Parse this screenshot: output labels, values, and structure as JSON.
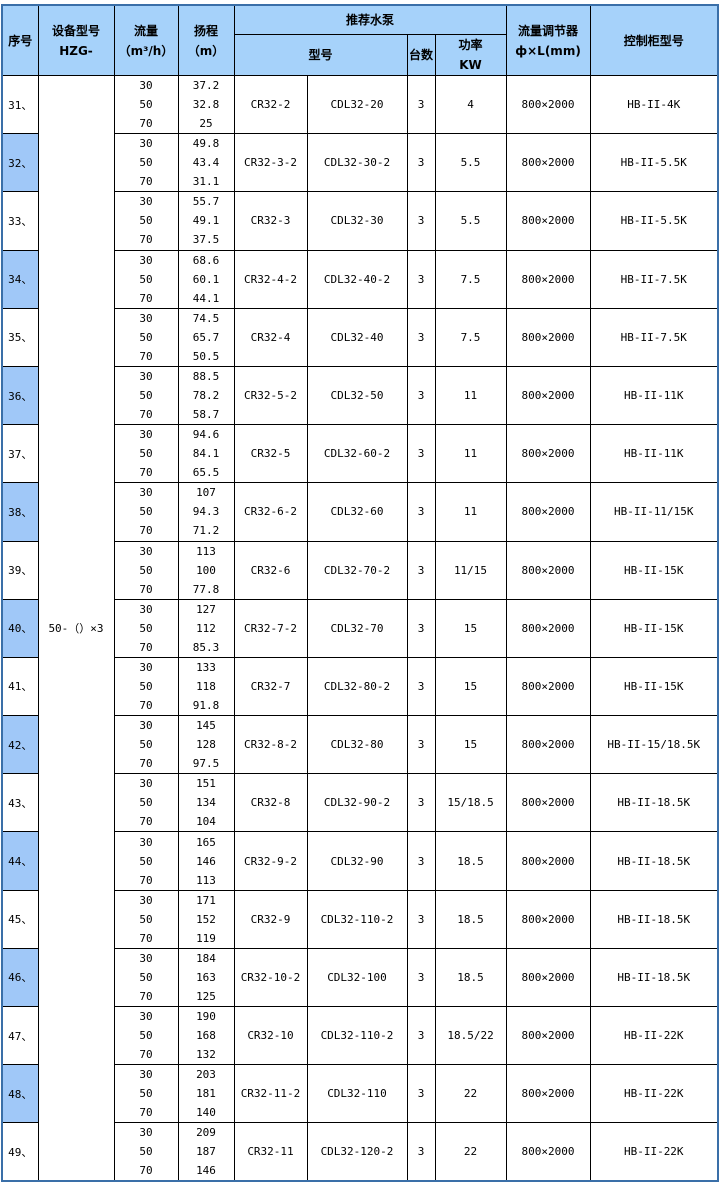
{
  "header": {
    "no": "序号",
    "model": "设备型号",
    "model_sub": "HZG-",
    "flow": "流量",
    "flow_unit": "（m³/h）",
    "head": "扬程",
    "head_unit": "（m）",
    "pump": "推荐水泵",
    "pump_model": "型号",
    "count": "台数",
    "power": "功率",
    "power_unit": "KW",
    "reg": "流量调节器",
    "reg_sub": "ф×L(mm)",
    "cabinet": "控制柜型号"
  },
  "device_model": "50-（）×3",
  "flows": [
    "30",
    "50",
    "70"
  ],
  "rows": [
    {
      "no": "31、",
      "heads": [
        "37.2",
        "32.8",
        "25"
      ],
      "cr": "CR32-2",
      "cdl": "CDL32-20",
      "n": "3",
      "kw": "4",
      "reg": "800×2000",
      "cab": "HB-II-4K"
    },
    {
      "no": "32、",
      "heads": [
        "49.8",
        "43.4",
        "31.1"
      ],
      "cr": "CR32-3-2",
      "cdl": "CDL32-30-2",
      "n": "3",
      "kw": "5.5",
      "reg": "800×2000",
      "cab": "HB-II-5.5K"
    },
    {
      "no": "33、",
      "heads": [
        "55.7",
        "49.1",
        "37.5"
      ],
      "cr": "CR32-3",
      "cdl": "CDL32-30",
      "n": "3",
      "kw": "5.5",
      "reg": "800×2000",
      "cab": "HB-II-5.5K"
    },
    {
      "no": "34、",
      "heads": [
        "68.6",
        "60.1",
        "44.1"
      ],
      "cr": "CR32-4-2",
      "cdl": "CDL32-40-2",
      "n": "3",
      "kw": "7.5",
      "reg": "800×2000",
      "cab": "HB-II-7.5K"
    },
    {
      "no": "35、",
      "heads": [
        "74.5",
        "65.7",
        "50.5"
      ],
      "cr": "CR32-4",
      "cdl": "CDL32-40",
      "n": "3",
      "kw": "7.5",
      "reg": "800×2000",
      "cab": "HB-II-7.5K"
    },
    {
      "no": "36、",
      "heads": [
        "88.5",
        "78.2",
        "58.7"
      ],
      "cr": "CR32-5-2",
      "cdl": "CDL32-50",
      "n": "3",
      "kw": "11",
      "reg": "800×2000",
      "cab": "HB-II-11K"
    },
    {
      "no": "37、",
      "heads": [
        "94.6",
        "84.1",
        "65.5"
      ],
      "cr": "CR32-5",
      "cdl": "CDL32-60-2",
      "n": "3",
      "kw": "11",
      "reg": "800×2000",
      "cab": "HB-II-11K"
    },
    {
      "no": "38、",
      "heads": [
        "107",
        "94.3",
        "71.2"
      ],
      "cr": "CR32-6-2",
      "cdl": "CDL32-60",
      "n": "3",
      "kw": "11",
      "reg": "800×2000",
      "cab": "HB-II-11/15K"
    },
    {
      "no": "39、",
      "heads": [
        "113",
        "100",
        "77.8"
      ],
      "cr": "CR32-6",
      "cdl": "CDL32-70-2",
      "n": "3",
      "kw": "11/15",
      "reg": "800×2000",
      "cab": "HB-II-15K"
    },
    {
      "no": "40、",
      "heads": [
        "127",
        "112",
        "85.3"
      ],
      "cr": "CR32-7-2",
      "cdl": "CDL32-70",
      "n": "3",
      "kw": "15",
      "reg": "800×2000",
      "cab": "HB-II-15K"
    },
    {
      "no": "41、",
      "heads": [
        "133",
        "118",
        "91.8"
      ],
      "cr": "CR32-7",
      "cdl": "CDL32-80-2",
      "n": "3",
      "kw": "15",
      "reg": "800×2000",
      "cab": "HB-II-15K"
    },
    {
      "no": "42、",
      "heads": [
        "145",
        "128",
        "97.5"
      ],
      "cr": "CR32-8-2",
      "cdl": "CDL32-80",
      "n": "3",
      "kw": "15",
      "reg": "800×2000",
      "cab": "HB-II-15/18.5K"
    },
    {
      "no": "43、",
      "heads": [
        "151",
        "134",
        "104"
      ],
      "cr": "CR32-8",
      "cdl": "CDL32-90-2",
      "n": "3",
      "kw": "15/18.5",
      "reg": "800×2000",
      "cab": "HB-II-18.5K"
    },
    {
      "no": "44、",
      "heads": [
        "165",
        "146",
        "113"
      ],
      "cr": "CR32-9-2",
      "cdl": "CDL32-90",
      "n": "3",
      "kw": "18.5",
      "reg": "800×2000",
      "cab": "HB-II-18.5K"
    },
    {
      "no": "45、",
      "heads": [
        "171",
        "152",
        "119"
      ],
      "cr": "CR32-9",
      "cdl": "CDL32-110-2",
      "n": "3",
      "kw": "18.5",
      "reg": "800×2000",
      "cab": "HB-II-18.5K"
    },
    {
      "no": "46、",
      "heads": [
        "184",
        "163",
        "125"
      ],
      "cr": "CR32-10-2",
      "cdl": "CDL32-100",
      "n": "3",
      "kw": "18.5",
      "reg": "800×2000",
      "cab": "HB-II-18.5K"
    },
    {
      "no": "47、",
      "heads": [
        "190",
        "168",
        "132"
      ],
      "cr": "CR32-10",
      "cdl": "CDL32-110-2",
      "n": "3",
      "kw": "18.5/22",
      "reg": "800×2000",
      "cab": "HB-II-22K"
    },
    {
      "no": "48、",
      "heads": [
        "203",
        "181",
        "140"
      ],
      "cr": "CR32-11-2",
      "cdl": "CDL32-110",
      "n": "3",
      "kw": "22",
      "reg": "800×2000",
      "cab": "HB-II-22K"
    },
    {
      "no": "49、",
      "heads": [
        "209",
        "187",
        "146"
      ],
      "cr": "CR32-11",
      "cdl": "CDL32-120-2",
      "n": "3",
      "kw": "22",
      "reg": "800×2000",
      "cab": "HB-II-22K"
    }
  ]
}
